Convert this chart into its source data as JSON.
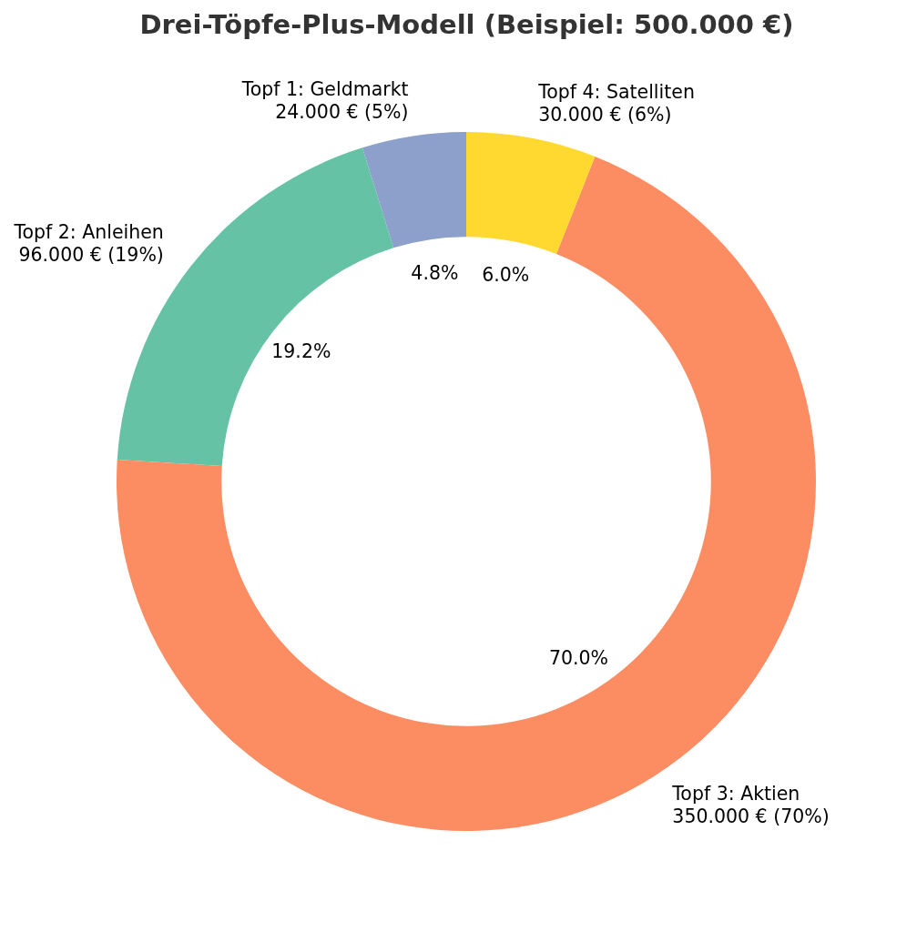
{
  "chart_data": {
    "type": "donut",
    "title": "Drei-Töpfe-Plus-Modell (Beispiel: 500.000 €)",
    "categories": [
      "Topf 1: Geldmarkt\n24.000 € (5%)",
      "Topf 2: Anleihen\n96.000 € (19%)",
      "Topf 3: Aktien\n350.000 € (70%)",
      "Topf 4: Satelliten\n30.000 € (6%)"
    ],
    "values": [
      4.8,
      19.2,
      70.0,
      6.0
    ],
    "colors": [
      "#8da0cb",
      "#66c2a5",
      "#fc8d62",
      "#ffd92f"
    ],
    "value_labels": [
      "4.8%",
      "19.2%",
      "70.0%",
      "6.0%"
    ]
  }
}
